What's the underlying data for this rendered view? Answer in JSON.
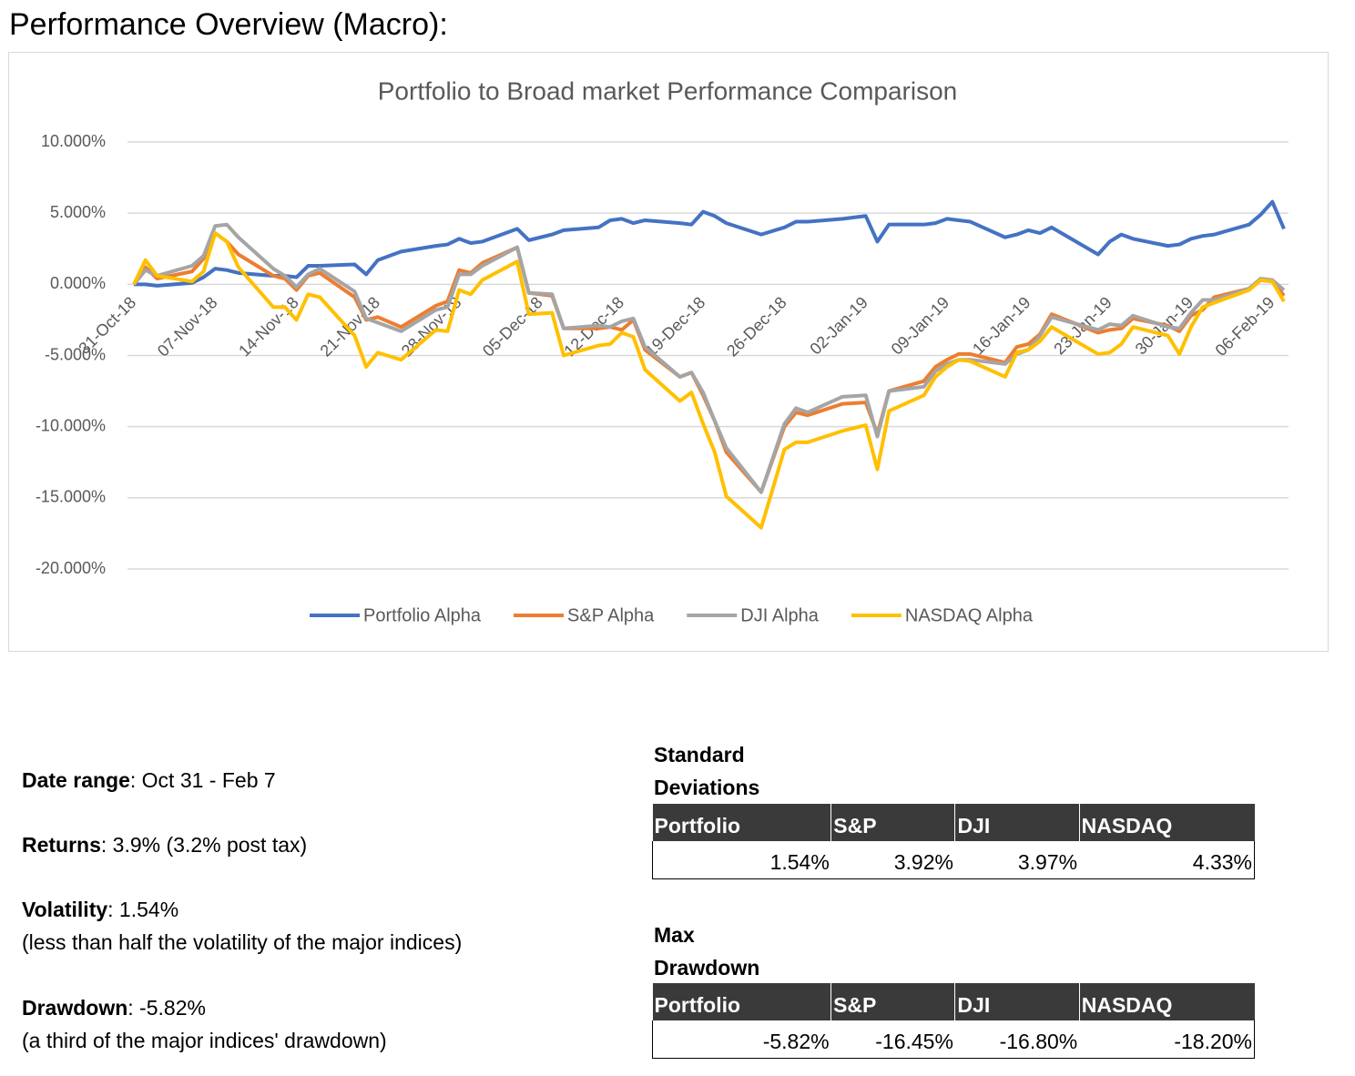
{
  "header": {
    "title": "Performance Overview (Macro):"
  },
  "chart_data": {
    "type": "line",
    "title": "Portfolio to Broad market Performance Comparison",
    "x": [
      "2018-10-31",
      "2018-11-01",
      "2018-11-02",
      "2018-11-05",
      "2018-11-06",
      "2018-11-07",
      "2018-11-08",
      "2018-11-09",
      "2018-11-12",
      "2018-11-13",
      "2018-11-14",
      "2018-11-15",
      "2018-11-16",
      "2018-11-19",
      "2018-11-20",
      "2018-11-21",
      "2018-11-23",
      "2018-11-26",
      "2018-11-27",
      "2018-11-28",
      "2018-11-29",
      "2018-11-30",
      "2018-12-03",
      "2018-12-04",
      "2018-12-06",
      "2018-12-07",
      "2018-12-10",
      "2018-12-11",
      "2018-12-12",
      "2018-12-13",
      "2018-12-14",
      "2018-12-17",
      "2018-12-18",
      "2018-12-19",
      "2018-12-20",
      "2018-12-21",
      "2018-12-24",
      "2018-12-26",
      "2018-12-27",
      "2018-12-28",
      "2018-12-31",
      "2019-01-02",
      "2019-01-03",
      "2019-01-04",
      "2019-01-07",
      "2019-01-08",
      "2019-01-09",
      "2019-01-10",
      "2019-01-11",
      "2019-01-14",
      "2019-01-15",
      "2019-01-16",
      "2019-01-17",
      "2019-01-18",
      "2019-01-22",
      "2019-01-23",
      "2019-01-24",
      "2019-01-25",
      "2019-01-28",
      "2019-01-29",
      "2019-01-30",
      "2019-01-31",
      "2019-02-01",
      "2019-02-04",
      "2019-02-05",
      "2019-02-06",
      "2019-02-07"
    ],
    "series": [
      {
        "name": "Portfolio Alpha",
        "color": "#4472c4",
        "values": [
          0,
          0,
          -0.1,
          0.1,
          0.5,
          1.1,
          1.0,
          0.8,
          0.6,
          0.6,
          0.5,
          1.3,
          1.3,
          1.4,
          0.7,
          1.7,
          2.3,
          2.7,
          2.8,
          3.2,
          2.9,
          3.0,
          3.9,
          3.1,
          3.5,
          3.8,
          4.0,
          4.5,
          4.6,
          4.3,
          4.5,
          4.3,
          4.2,
          5.1,
          4.8,
          4.3,
          3.5,
          4.0,
          4.4,
          4.4,
          4.6,
          4.8,
          3.0,
          4.2,
          4.2,
          4.3,
          4.6,
          4.5,
          4.4,
          3.3,
          3.5,
          3.8,
          3.6,
          4.0,
          2.1,
          3.0,
          3.5,
          3.2,
          2.7,
          2.8,
          3.2,
          3.4,
          3.5,
          4.2,
          4.9,
          5.8,
          3.9
        ]
      },
      {
        "name": "S&P Alpha",
        "color": "#ed7d31",
        "values": [
          0,
          1.2,
          0.4,
          0.9,
          1.8,
          3.6,
          3.0,
          2.1,
          0.6,
          0.4,
          -0.4,
          0.6,
          0.8,
          -0.9,
          -2.5,
          -2.3,
          -3.0,
          -1.5,
          -1.2,
          1.0,
          0.8,
          1.5,
          2.6,
          -0.6,
          -0.8,
          -3.1,
          -3.1,
          -3.0,
          -3.2,
          -2.5,
          -4.6,
          -6.5,
          -6.2,
          -7.8,
          -9.6,
          -11.8,
          -14.6,
          -10.0,
          -9.0,
          -9.2,
          -8.4,
          -8.3,
          -10.5,
          -7.5,
          -6.8,
          -5.8,
          -5.3,
          -4.9,
          -4.9,
          -5.5,
          -4.4,
          -4.2,
          -3.5,
          -2.1,
          -3.4,
          -3.2,
          -3.1,
          -2.4,
          -2.9,
          -3.3,
          -2.2,
          -1.8,
          -0.9,
          -0.3,
          0.3,
          0.2,
          -0.8
        ]
      },
      {
        "name": "DJI Alpha",
        "color": "#a5a5a5",
        "values": [
          0,
          1.0,
          0.6,
          1.3,
          2.0,
          4.1,
          4.2,
          3.3,
          1.1,
          0.6,
          -0.2,
          0.7,
          1.1,
          -0.5,
          -2.4,
          -2.7,
          -3.3,
          -1.8,
          -1.6,
          0.7,
          0.7,
          1.3,
          2.6,
          -0.6,
          -0.7,
          -3.1,
          -2.9,
          -3.0,
          -2.6,
          -2.4,
          -4.4,
          -6.5,
          -6.2,
          -7.6,
          -9.6,
          -11.5,
          -14.6,
          -9.8,
          -8.7,
          -9.0,
          -7.9,
          -7.8,
          -10.7,
          -7.5,
          -7.2,
          -6.1,
          -5.6,
          -5.3,
          -5.3,
          -5.6,
          -4.9,
          -4.6,
          -3.6,
          -2.3,
          -3.2,
          -2.8,
          -2.9,
          -2.2,
          -3.0,
          -3.1,
          -2.0,
          -1.1,
          -1.1,
          -0.3,
          0.4,
          0.3,
          -0.4
        ]
      },
      {
        "name": "NASDAQ Alpha",
        "color": "#ffc000",
        "values": [
          0,
          1.7,
          0.6,
          0.2,
          0.9,
          3.6,
          3.0,
          1.2,
          -1.6,
          -1.6,
          -2.5,
          -0.7,
          -0.9,
          -3.6,
          -5.8,
          -4.8,
          -5.3,
          -3.2,
          -3.3,
          -0.4,
          -0.7,
          0.3,
          1.6,
          -2.1,
          -2.0,
          -5.0,
          -4.3,
          -4.2,
          -3.4,
          -3.7,
          -6.0,
          -8.2,
          -7.6,
          -9.8,
          -11.8,
          -14.9,
          -17.1,
          -11.6,
          -11.1,
          -11.1,
          -10.3,
          -9.9,
          -13.0,
          -8.9,
          -7.8,
          -6.5,
          -5.8,
          -5.3,
          -5.4,
          -6.5,
          -4.8,
          -4.6,
          -4.0,
          -3.0,
          -4.9,
          -4.8,
          -4.2,
          -3.0,
          -3.6,
          -4.9,
          -3.0,
          -1.6,
          -1.3,
          -0.4,
          0.3,
          0.2,
          -1.2
        ]
      }
    ],
    "xlim": [
      "2018-10-31",
      "2019-02-07"
    ],
    "xticks": [
      {
        "value": "2018-10-31",
        "label": "31-Oct-18"
      },
      {
        "value": "2018-11-07",
        "label": "07-Nov-18"
      },
      {
        "value": "2018-11-14",
        "label": "14-Nov-18"
      },
      {
        "value": "2018-11-21",
        "label": "21-Nov-18"
      },
      {
        "value": "2018-11-28",
        "label": "28-Nov-18"
      },
      {
        "value": "2018-12-05",
        "label": "05-Dec-18"
      },
      {
        "value": "2018-12-12",
        "label": "12-Dec-18"
      },
      {
        "value": "2018-12-19",
        "label": "19-Dec-18"
      },
      {
        "value": "2018-12-26",
        "label": "26-Dec-18"
      },
      {
        "value": "2019-01-02",
        "label": "02-Jan-19"
      },
      {
        "value": "2019-01-09",
        "label": "09-Jan-19"
      },
      {
        "value": "2019-01-16",
        "label": "16-Jan-19"
      },
      {
        "value": "2019-01-23",
        "label": "23-Jan-19"
      },
      {
        "value": "2019-01-30",
        "label": "30-Jan-19"
      },
      {
        "value": "2019-02-06",
        "label": "06-Feb-19"
      }
    ],
    "ylim": [
      -20,
      10
    ],
    "yticks": [
      {
        "value": 10,
        "label": "10.000%"
      },
      {
        "value": 5,
        "label": "5.000%"
      },
      {
        "value": 0,
        "label": "0.000%"
      },
      {
        "value": -5,
        "label": "-5.000%"
      },
      {
        "value": -10,
        "label": "-10.000%"
      },
      {
        "value": -15,
        "label": "-15.000%"
      },
      {
        "value": -20,
        "label": "-20.000%"
      }
    ],
    "grid": true,
    "legend": "bottom"
  },
  "summary": [
    {
      "label": "Date range",
      "text": ": Oct 31 - Feb 7"
    },
    {
      "label": "Returns",
      "text": ": 3.9% (3.2% post tax)"
    },
    {
      "label": "Volatility",
      "text": ": 1.54%",
      "note": "(less than half the volatility of the major indices)"
    },
    {
      "label": "Drawdown",
      "text": ": -5.82%",
      "note": "(a third of the major indices' drawdown)"
    }
  ],
  "tables": [
    {
      "title": "Standard Deviations",
      "columns": [
        "Portfolio",
        "S&P",
        "DJI",
        "NASDAQ"
      ],
      "values": [
        "1.54%",
        "3.92%",
        "3.97%",
        "4.33%"
      ]
    },
    {
      "title": "Max Drawdown",
      "columns": [
        "Portfolio",
        "S&P",
        "DJI",
        "NASDAQ"
      ],
      "values": [
        "-5.82%",
        "-16.45%",
        "-16.80%",
        "-18.20%"
      ]
    }
  ]
}
